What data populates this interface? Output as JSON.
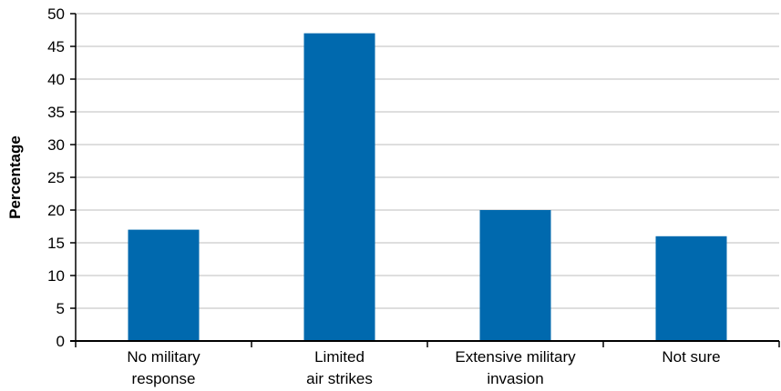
{
  "chart_data": {
    "type": "bar",
    "categories": [
      [
        "No military",
        "response"
      ],
      [
        "Limited",
        "air strikes"
      ],
      [
        "Extensive military",
        "invasion"
      ],
      [
        "Not sure"
      ]
    ],
    "values": [
      17,
      47,
      20,
      16
    ],
    "ylabel": "Percentage",
    "ylim": [
      0,
      50
    ],
    "yticks": [
      0,
      5,
      10,
      15,
      20,
      25,
      30,
      35,
      40,
      45,
      50
    ],
    "grid": true,
    "bar_color": "#0069ae",
    "grid_color": "#bdbdbd"
  }
}
